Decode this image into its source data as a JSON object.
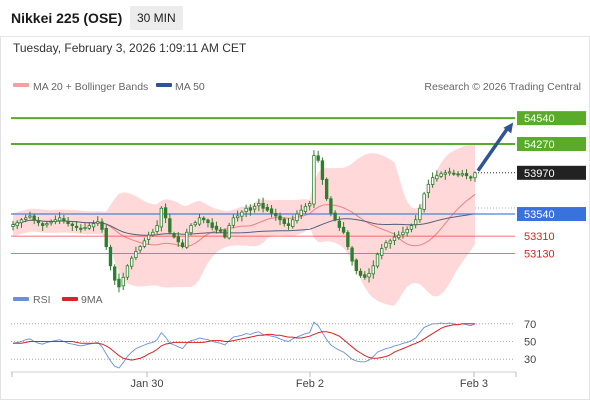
{
  "header": {
    "title": "Nikkei 225 (OSE)",
    "timeframe": "30 MIN",
    "datetime": "Tuesday, February 3, 2026 1:09:11 AM CET"
  },
  "legend": {
    "ma20": "MA 20 + Bollinger Bands",
    "ma50": "MA 50",
    "credit": "Research © 2026 Trading Central",
    "rsi": "RSI",
    "rsi_ma": "9MA"
  },
  "colors": {
    "candle": "#2f7d2f",
    "candle_down": "#cc2222",
    "bollinger": "#ffcccc",
    "ma20": "#f08080",
    "ma50": "#2f5496",
    "resistance": "#5aab2a",
    "pivot": "#4a7fe0",
    "support": "#ee4444",
    "rsi": "#6a8fe0",
    "rsi_ma": "#dd2222",
    "arrow": "#2f5496"
  },
  "chart_data": {
    "type": "candlestick",
    "y_range": [
      52800,
      54750
    ],
    "x_labels": [
      "Jan 30",
      "Feb 2",
      "Feb 3"
    ],
    "current_price": 53970,
    "levels": [
      {
        "label": "54540",
        "value": 54540,
        "kind": "resistance"
      },
      {
        "label": "54270",
        "value": 54270,
        "kind": "resistance"
      },
      {
        "label": "53970",
        "value": 53970,
        "kind": "current"
      },
      {
        "label": "53540",
        "value": 53540,
        "kind": "pivot"
      },
      {
        "label": "53310",
        "value": 53310,
        "kind": "support"
      },
      {
        "label": "53130",
        "value": 53130,
        "kind": "support"
      }
    ],
    "close": [
      53430,
      53450,
      53480,
      53500,
      53520,
      53480,
      53450,
      53420,
      53440,
      53460,
      53480,
      53500,
      53470,
      53440,
      53420,
      53400,
      53380,
      53400,
      53420,
      53440,
      53460,
      53380,
      53200,
      53000,
      52850,
      52780,
      52880,
      53000,
      53080,
      53150,
      53200,
      53260,
      53320,
      53350,
      53420,
      53600,
      53500,
      53350,
      53300,
      53250,
      53200,
      53350,
      53420,
      53450,
      53500,
      53480,
      53450,
      53400,
      53380,
      53360,
      53300,
      53420,
      53500,
      53520,
      53560,
      53600,
      53580,
      53620,
      53650,
      53600,
      53580,
      53550,
      53520,
      53480,
      53440,
      53420,
      53480,
      53540,
      53580,
      53620,
      53650,
      54150,
      54100,
      53900,
      53700,
      53550,
      53480,
      53400,
      53350,
      53200,
      53050,
      52950,
      52900,
      52880,
      52920,
      53000,
      53120,
      53180,
      53240,
      53260,
      53300,
      53320,
      53350,
      53380,
      53420,
      53480,
      53600,
      53750,
      53850,
      53920,
      53940,
      53960,
      53970,
      53980,
      53960,
      53950,
      53960,
      53940,
      53920,
      53970
    ],
    "rsi": {
      "levels": [
        70,
        50,
        30
      ],
      "values": [
        48,
        49,
        50,
        52,
        53,
        50,
        48,
        47,
        49,
        50,
        51,
        52,
        50,
        48,
        47,
        46,
        45,
        46,
        47,
        48,
        49,
        44,
        36,
        28,
        22,
        20,
        26,
        33,
        38,
        42,
        44,
        46,
        48,
        49,
        52,
        60,
        55,
        48,
        46,
        44,
        42,
        48,
        51,
        52,
        54,
        53,
        52,
        50,
        49,
        48,
        46,
        51,
        55,
        56,
        57,
        59,
        58,
        60,
        61,
        58,
        57,
        56,
        55,
        53,
        51,
        50,
        53,
        55,
        57,
        59,
        60,
        72,
        68,
        60,
        52,
        46,
        43,
        40,
        38,
        34,
        30,
        28,
        27,
        27,
        29,
        33,
        38,
        40,
        42,
        43,
        45,
        46,
        48,
        49,
        51,
        54,
        60,
        66,
        68,
        70,
        70,
        71,
        70,
        71,
        70,
        69,
        70,
        69,
        68,
        70
      ],
      "ma": [
        48,
        48,
        48,
        49,
        50,
        50,
        50,
        50,
        50,
        50,
        50,
        50,
        50,
        50,
        50,
        49,
        48,
        48,
        48,
        48,
        48,
        47,
        45,
        42,
        38,
        34,
        31,
        30,
        29,
        30,
        31,
        33,
        36,
        38,
        41,
        45,
        47,
        48,
        49,
        49,
        49,
        49,
        49,
        49,
        49,
        49,
        50,
        51,
        51,
        51,
        50,
        50,
        51,
        52,
        53,
        54,
        55,
        56,
        57,
        57,
        58,
        58,
        57,
        57,
        56,
        55,
        55,
        54,
        54,
        55,
        56,
        58,
        60,
        61,
        61,
        60,
        58,
        56,
        52,
        48,
        44,
        40,
        37,
        34,
        32,
        31,
        31,
        32,
        33,
        35,
        38,
        40,
        42,
        44,
        46,
        48,
        50,
        53,
        56,
        59,
        62,
        65,
        67,
        68,
        69,
        69,
        70,
        70,
        70,
        70
      ]
    }
  }
}
